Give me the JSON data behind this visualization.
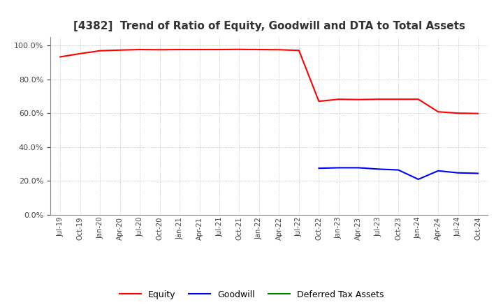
{
  "title": "[4382]  Trend of Ratio of Equity, Goodwill and DTA to Total Assets",
  "title_fontsize": 11,
  "title_color": "#333333",
  "x_labels": [
    "Jul-19",
    "Oct-19",
    "Jan-20",
    "Apr-20",
    "Jul-20",
    "Oct-20",
    "Jan-21",
    "Apr-21",
    "Jul-21",
    "Oct-21",
    "Jan-22",
    "Apr-22",
    "Jul-22",
    "Oct-22",
    "Jan-23",
    "Apr-23",
    "Jul-23",
    "Oct-23",
    "Jan-24",
    "Apr-24",
    "Jul-24",
    "Oct-24"
  ],
  "equity": [
    0.932,
    0.951,
    0.968,
    0.972,
    0.975,
    0.974,
    0.975,
    0.975,
    0.975,
    0.976,
    0.975,
    0.974,
    0.97,
    0.67,
    0.682,
    0.68,
    0.682,
    0.682,
    0.682,
    0.608,
    0.6,
    0.598
  ],
  "goodwill": [
    null,
    null,
    null,
    null,
    null,
    null,
    null,
    null,
    null,
    null,
    null,
    null,
    null,
    0.275,
    0.278,
    0.278,
    0.27,
    0.265,
    0.21,
    0.26,
    0.248,
    0.245
  ],
  "dta": [
    null,
    null,
    null,
    null,
    null,
    null,
    null,
    null,
    null,
    null,
    null,
    null,
    null,
    null,
    null,
    null,
    null,
    null,
    null,
    null,
    null,
    null
  ],
  "equity_color": "#FF0000",
  "goodwill_color": "#0000FF",
  "dta_color": "#008000",
  "ylim": [
    0.0,
    1.05
  ],
  "yticks": [
    0.0,
    0.2,
    0.4,
    0.6,
    0.8,
    1.0
  ],
  "background_color": "#FFFFFF",
  "grid_color": "#999999"
}
